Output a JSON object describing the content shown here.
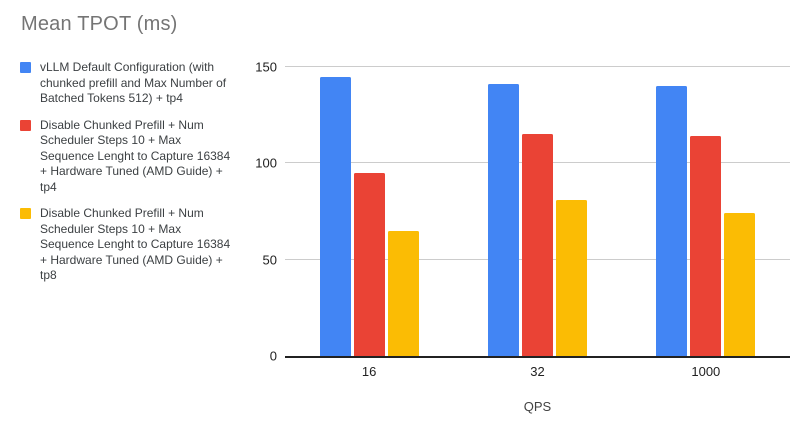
{
  "chart_data": {
    "type": "bar",
    "title": "Mean TPOT (ms)",
    "xlabel": "QPS",
    "ylabel": "",
    "categories": [
      "16",
      "32",
      "1000"
    ],
    "series": [
      {
        "name": "vLLM Default Configuration (with chunked prefill and Max Number of Batched Tokens 512) + tp4",
        "color": "#4285F4",
        "values": [
          145,
          141,
          140
        ]
      },
      {
        "name": "Disable Chunked Prefill + Num Scheduler Steps 10 + Max Sequence Lenght to Capture 16384 + Hardware Tuned (AMD Guide) + tp4",
        "color": "#EA4335",
        "values": [
          95,
          115,
          114
        ]
      },
      {
        "name": "Disable Chunked Prefill + Num Scheduler Steps 10 + Max Sequence Lenght to Capture 16384 + Hardware Tuned (AMD Guide) + tp8",
        "color": "#FBBC04",
        "values": [
          65,
          81,
          74
        ]
      }
    ],
    "ylim": [
      0,
      150
    ],
    "yticks": [
      0,
      50,
      100,
      150
    ],
    "grid": true,
    "legend_position": "left",
    "colors": {
      "title_text": "#757575",
      "tick_text": "#212121",
      "legend_text": "#3c4043",
      "gridline": "#cccccc",
      "axis_line": "#212121",
      "background": "#ffffff"
    }
  }
}
